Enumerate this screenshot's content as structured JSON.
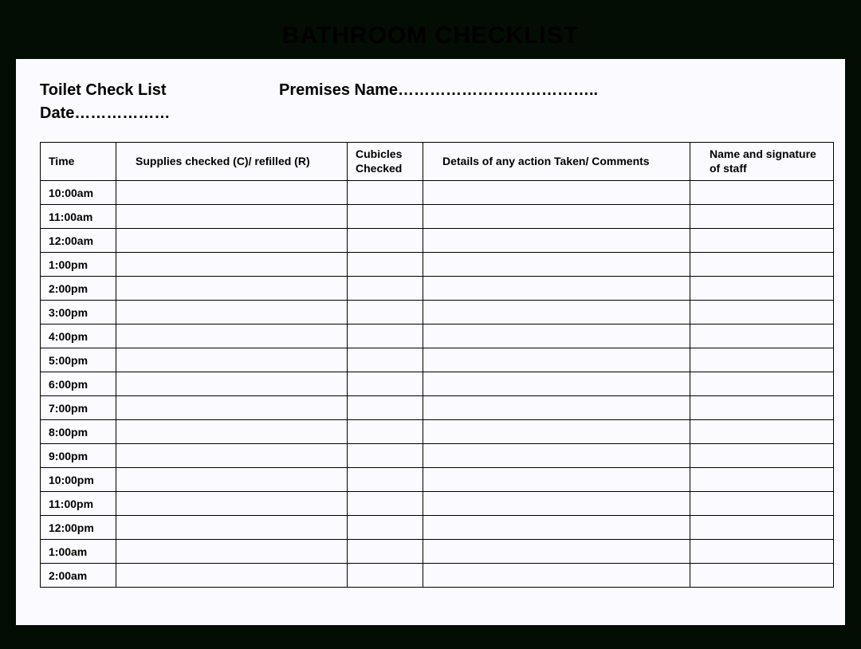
{
  "banner_title": "BATHROOM CHECKLIST",
  "header": {
    "left_label": "Toilet Check List",
    "right_label": "Premises Name………………………………..",
    "date_label": "Date………………"
  },
  "table": {
    "columns": [
      "Time",
      "Supplies checked (C)/ refilled  (R)",
      "Cubicles Checked",
      "Details of any action Taken/ Comments",
      "Name and signature of staff"
    ],
    "rows": [
      {
        "time": "10:00am"
      },
      {
        "time": "11:00am"
      },
      {
        "time": "12:00am"
      },
      {
        "time": "1:00pm"
      },
      {
        "time": "2:00pm"
      },
      {
        "time": "3:00pm"
      },
      {
        "time": "4:00pm"
      },
      {
        "time": "5:00pm"
      },
      {
        "time": "6:00pm"
      },
      {
        "time": "7:00pm"
      },
      {
        "time": "8:00pm"
      },
      {
        "time": "9:00pm"
      },
      {
        "time": "10:00pm"
      },
      {
        "time": "11:00pm"
      },
      {
        "time": "12:00pm"
      },
      {
        "time": "1:00am"
      },
      {
        "time": "2:00am"
      }
    ]
  },
  "colors": {
    "page_background": "#040d04",
    "sheet_background": "#fbfbff",
    "text": "#000000",
    "border": "#000000"
  }
}
